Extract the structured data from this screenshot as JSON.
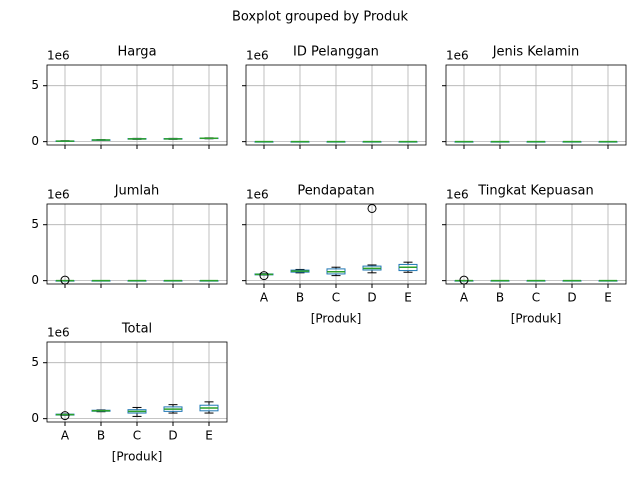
{
  "title": "Boxplot grouped by Produk",
  "chart_data": [
    {
      "type": "box",
      "title": "Harga",
      "offset_label": "1e6",
      "ylim": [
        -0.3,
        6.85
      ],
      "yticks": [
        0,
        5
      ],
      "grid": true,
      "box_color": "#1f77b4",
      "median_color": "#2ca02c",
      "whisker_color": "#000000",
      "boxes": [
        {
          "whislo": 0.02,
          "q1": 0.04,
          "med": 0.05,
          "q3": 0.06,
          "whishi": 0.08,
          "fliers": []
        },
        {
          "whislo": 0.12,
          "q1": 0.14,
          "med": 0.15,
          "q3": 0.16,
          "whishi": 0.18,
          "fliers": []
        },
        {
          "whislo": 0.21,
          "q1": 0.23,
          "med": 0.25,
          "q3": 0.27,
          "whishi": 0.29,
          "fliers": []
        },
        {
          "whislo": 0.21,
          "q1": 0.23,
          "med": 0.25,
          "q3": 0.27,
          "whishi": 0.29,
          "fliers": []
        },
        {
          "whislo": 0.26,
          "q1": 0.28,
          "med": 0.3,
          "q3": 0.32,
          "whishi": 0.34,
          "fliers": []
        }
      ]
    },
    {
      "type": "box",
      "title": "ID Pelanggan",
      "offset_label": "1e6",
      "ylim": [
        -0.3,
        6.85
      ],
      "yticks": [
        0,
        5
      ],
      "grid": true,
      "box_color": "#1f77b4",
      "median_color": "#2ca02c",
      "whisker_color": "#000000",
      "boxes": [
        {
          "whislo": 0,
          "q1": 0,
          "med": 0,
          "q3": 0,
          "whishi": 0,
          "fliers": []
        },
        {
          "whislo": 0,
          "q1": 0,
          "med": 0,
          "q3": 0,
          "whishi": 0,
          "fliers": []
        },
        {
          "whislo": 0,
          "q1": 0,
          "med": 0,
          "q3": 0,
          "whishi": 0,
          "fliers": []
        },
        {
          "whislo": 0,
          "q1": 0,
          "med": 0,
          "q3": 0,
          "whishi": 0,
          "fliers": []
        },
        {
          "whislo": 0,
          "q1": 0,
          "med": 0,
          "q3": 0,
          "whishi": 0,
          "fliers": []
        }
      ]
    },
    {
      "type": "box",
      "title": "Jenis Kelamin",
      "offset_label": "1e6",
      "ylim": [
        -0.3,
        6.85
      ],
      "yticks": [
        0,
        5
      ],
      "grid": true,
      "box_color": "#1f77b4",
      "median_color": "#2ca02c",
      "whisker_color": "#000000",
      "boxes": [
        {
          "whislo": 0,
          "q1": 0,
          "med": 0,
          "q3": 0,
          "whishi": 0,
          "fliers": []
        },
        {
          "whislo": 0,
          "q1": 0,
          "med": 0,
          "q3": 0,
          "whishi": 0,
          "fliers": []
        },
        {
          "whislo": 0,
          "q1": 0,
          "med": 0,
          "q3": 0,
          "whishi": 0,
          "fliers": []
        },
        {
          "whislo": 0,
          "q1": 0,
          "med": 0,
          "q3": 0,
          "whishi": 0,
          "fliers": []
        },
        {
          "whislo": 0,
          "q1": 0,
          "med": 0,
          "q3": 0,
          "whishi": 0,
          "fliers": []
        }
      ]
    },
    {
      "type": "box",
      "title": "Jumlah",
      "offset_label": "1e6",
      "ylim": [
        -0.3,
        6.85
      ],
      "yticks": [
        0,
        5
      ],
      "grid": true,
      "box_color": "#1f77b4",
      "median_color": "#2ca02c",
      "whisker_color": "#000000",
      "boxes": [
        {
          "whislo": 0,
          "q1": 0,
          "med": 0,
          "q3": 0,
          "whishi": 0,
          "fliers": [
            0.05
          ]
        },
        {
          "whislo": 0,
          "q1": 0,
          "med": 0,
          "q3": 0,
          "whishi": 0,
          "fliers": []
        },
        {
          "whislo": 0,
          "q1": 0,
          "med": 0,
          "q3": 0,
          "whishi": 0,
          "fliers": []
        },
        {
          "whislo": 0,
          "q1": 0,
          "med": 0,
          "q3": 0,
          "whishi": 0,
          "fliers": []
        },
        {
          "whislo": 0,
          "q1": 0,
          "med": 0,
          "q3": 0,
          "whishi": 0,
          "fliers": []
        }
      ]
    },
    {
      "type": "box",
      "title": "Pendapatan",
      "offset_label": "1e6",
      "xlabel": "[Produk]",
      "categories": [
        "A",
        "B",
        "C",
        "D",
        "E"
      ],
      "ylim": [
        -0.3,
        6.85
      ],
      "yticks": [
        0,
        5
      ],
      "grid": true,
      "box_color": "#1f77b4",
      "median_color": "#2ca02c",
      "whisker_color": "#000000",
      "boxes": [
        {
          "whislo": 0.5,
          "q1": 0.52,
          "med": 0.56,
          "q3": 0.6,
          "whishi": 0.62,
          "fliers": [
            0.45
          ]
        },
        {
          "whislo": 0.7,
          "q1": 0.76,
          "med": 0.85,
          "q3": 0.94,
          "whishi": 1.0,
          "fliers": []
        },
        {
          "whislo": 0.45,
          "q1": 0.6,
          "med": 0.8,
          "q3": 1.05,
          "whishi": 1.2,
          "fliers": []
        },
        {
          "whislo": 0.7,
          "q1": 0.95,
          "med": 1.1,
          "q3": 1.3,
          "whishi": 1.4,
          "fliers": [
            6.45
          ]
        },
        {
          "whislo": 0.75,
          "q1": 0.9,
          "med": 1.2,
          "q3": 1.45,
          "whishi": 1.65,
          "fliers": []
        }
      ]
    },
    {
      "type": "box",
      "title": "Tingkat Kepuasan",
      "offset_label": "1e6",
      "xlabel": "[Produk]",
      "categories": [
        "A",
        "B",
        "C",
        "D",
        "E"
      ],
      "ylim": [
        -0.3,
        6.85
      ],
      "yticks": [
        0,
        5
      ],
      "grid": true,
      "box_color": "#1f77b4",
      "median_color": "#2ca02c",
      "whisker_color": "#000000",
      "boxes": [
        {
          "whislo": 0,
          "q1": 0,
          "med": 0,
          "q3": 0,
          "whishi": 0,
          "fliers": [
            0.05
          ]
        },
        {
          "whislo": 0,
          "q1": 0,
          "med": 0,
          "q3": 0,
          "whishi": 0,
          "fliers": []
        },
        {
          "whislo": 0,
          "q1": 0,
          "med": 0,
          "q3": 0,
          "whishi": 0,
          "fliers": []
        },
        {
          "whislo": 0,
          "q1": 0,
          "med": 0,
          "q3": 0,
          "whishi": 0,
          "fliers": []
        },
        {
          "whislo": 0,
          "q1": 0,
          "med": 0,
          "q3": 0,
          "whishi": 0,
          "fliers": []
        }
      ]
    },
    {
      "type": "box",
      "title": "Total",
      "offset_label": "1e6",
      "xlabel": "[Produk]",
      "categories": [
        "A",
        "B",
        "C",
        "D",
        "E"
      ],
      "ylim": [
        -0.3,
        6.85
      ],
      "yticks": [
        0,
        5
      ],
      "grid": true,
      "box_color": "#1f77b4",
      "median_color": "#2ca02c",
      "whisker_color": "#000000",
      "boxes": [
        {
          "whislo": 0.3,
          "q1": 0.32,
          "med": 0.36,
          "q3": 0.4,
          "whishi": 0.42,
          "fliers": [
            0.27
          ]
        },
        {
          "whislo": 0.62,
          "q1": 0.66,
          "med": 0.7,
          "q3": 0.75,
          "whishi": 0.78,
          "fliers": []
        },
        {
          "whislo": 0.2,
          "q1": 0.5,
          "med": 0.65,
          "q3": 0.8,
          "whishi": 1.0,
          "fliers": []
        },
        {
          "whislo": 0.5,
          "q1": 0.65,
          "med": 0.85,
          "q3": 1.05,
          "whishi": 1.25,
          "fliers": []
        },
        {
          "whislo": 0.5,
          "q1": 0.7,
          "med": 0.95,
          "q3": 1.2,
          "whishi": 1.5,
          "fliers": []
        }
      ]
    }
  ]
}
